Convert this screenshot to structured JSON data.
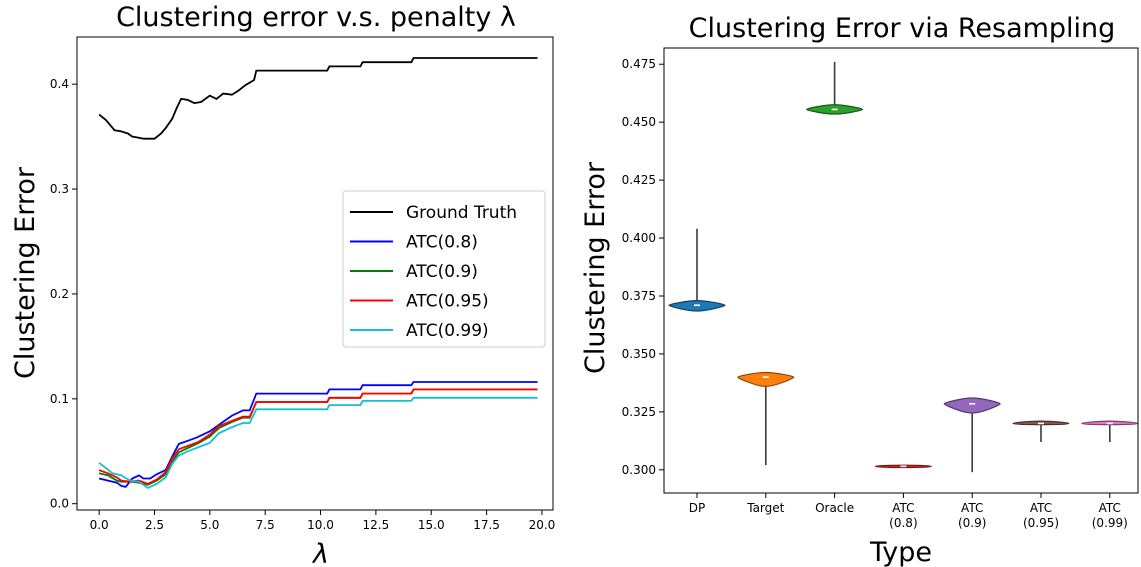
{
  "chart_data": [
    {
      "type": "line",
      "title": "Clustering error v.s. penalty λ",
      "xlabel": "λ",
      "ylabel": "Clustering Error",
      "xlim": [
        -1,
        20.5
      ],
      "ylim": [
        -0.006,
        0.445
      ],
      "xticks": [
        0.0,
        2.5,
        5.0,
        7.5,
        10.0,
        12.5,
        15.0,
        17.5,
        20.0
      ],
      "xtick_labels": [
        "0.0",
        "2.5",
        "5.0",
        "7.5",
        "10.0",
        "12.5",
        "15.0",
        "17.5",
        "20.0"
      ],
      "yticks": [
        0.0,
        0.1,
        0.2,
        0.3,
        0.4
      ],
      "ytick_labels": [
        "0.0",
        "0.1",
        "0.2",
        "0.3",
        "0.4"
      ],
      "grid": false,
      "legend_position": "right",
      "series": [
        {
          "name": "Ground Truth",
          "color": "#000000",
          "points": [
            [
              0,
              0.371
            ],
            [
              0.3,
              0.366
            ],
            [
              0.5,
              0.361
            ],
            [
              0.7,
              0.356
            ],
            [
              1.0,
              0.355
            ],
            [
              1.3,
              0.353
            ],
            [
              1.5,
              0.35
            ],
            [
              1.8,
              0.349
            ],
            [
              2.0,
              0.348
            ],
            [
              2.5,
              0.348
            ],
            [
              2.8,
              0.353
            ],
            [
              3.0,
              0.358
            ],
            [
              3.3,
              0.367
            ],
            [
              3.5,
              0.377
            ],
            [
              3.7,
              0.386
            ],
            [
              4.0,
              0.385
            ],
            [
              4.3,
              0.382
            ],
            [
              4.6,
              0.383
            ],
            [
              5.0,
              0.389
            ],
            [
              5.3,
              0.386
            ],
            [
              5.6,
              0.391
            ],
            [
              6.0,
              0.39
            ],
            [
              6.3,
              0.394
            ],
            [
              6.6,
              0.399
            ],
            [
              7.0,
              0.404
            ],
            [
              7.1,
              0.413
            ],
            [
              10.3,
              0.413
            ],
            [
              10.4,
              0.417
            ],
            [
              11.8,
              0.417
            ],
            [
              11.9,
              0.421
            ],
            [
              14.1,
              0.421
            ],
            [
              14.2,
              0.425
            ],
            [
              19.8,
              0.425
            ]
          ]
        },
        {
          "name": "ATC(0.8)",
          "color": "#0000ff",
          "points": [
            [
              0,
              0.024
            ],
            [
              0.4,
              0.022
            ],
            [
              0.8,
              0.02
            ],
            [
              1.0,
              0.017
            ],
            [
              1.2,
              0.016
            ],
            [
              1.5,
              0.024
            ],
            [
              1.8,
              0.027
            ],
            [
              2.0,
              0.024
            ],
            [
              2.3,
              0.024
            ],
            [
              2.6,
              0.028
            ],
            [
              3.0,
              0.032
            ],
            [
              3.3,
              0.045
            ],
            [
              3.6,
              0.057
            ],
            [
              4.0,
              0.06
            ],
            [
              4.4,
              0.063
            ],
            [
              5.0,
              0.069
            ],
            [
              5.4,
              0.075
            ],
            [
              6.0,
              0.084
            ],
            [
              6.5,
              0.089
            ],
            [
              6.8,
              0.089
            ],
            [
              7.1,
              0.105
            ],
            [
              10.3,
              0.105
            ],
            [
              10.4,
              0.109
            ],
            [
              11.8,
              0.109
            ],
            [
              11.9,
              0.113
            ],
            [
              14.1,
              0.113
            ],
            [
              14.2,
              0.116
            ],
            [
              19.8,
              0.116
            ]
          ]
        },
        {
          "name": "ATC(0.9)",
          "color": "#008000",
          "points": [
            [
              0,
              0.029
            ],
            [
              0.4,
              0.027
            ],
            [
              0.8,
              0.022
            ],
            [
              1.0,
              0.021
            ],
            [
              1.5,
              0.021
            ],
            [
              1.8,
              0.02
            ],
            [
              2.2,
              0.018
            ],
            [
              2.6,
              0.022
            ],
            [
              3.0,
              0.028
            ],
            [
              3.3,
              0.04
            ],
            [
              3.6,
              0.049
            ],
            [
              4.0,
              0.053
            ],
            [
              4.5,
              0.058
            ],
            [
              5.0,
              0.064
            ],
            [
              5.4,
              0.072
            ],
            [
              6.0,
              0.078
            ],
            [
              6.5,
              0.082
            ],
            [
              6.8,
              0.082
            ],
            [
              7.1,
              0.097
            ],
            [
              10.3,
              0.097
            ],
            [
              10.4,
              0.101
            ],
            [
              11.8,
              0.101
            ],
            [
              11.9,
              0.105
            ],
            [
              14.1,
              0.105
            ],
            [
              14.2,
              0.109
            ],
            [
              19.8,
              0.109
            ]
          ]
        },
        {
          "name": "ATC(0.95)",
          "color": "#ff0000",
          "points": [
            [
              0,
              0.032
            ],
            [
              0.4,
              0.029
            ],
            [
              0.8,
              0.025
            ],
            [
              1.0,
              0.022
            ],
            [
              1.4,
              0.021
            ],
            [
              1.8,
              0.022
            ],
            [
              2.2,
              0.019
            ],
            [
              2.6,
              0.023
            ],
            [
              3.0,
              0.03
            ],
            [
              3.3,
              0.043
            ],
            [
              3.6,
              0.052
            ],
            [
              4.0,
              0.055
            ],
            [
              4.5,
              0.059
            ],
            [
              5.0,
              0.066
            ],
            [
              5.4,
              0.074
            ],
            [
              6.0,
              0.079
            ],
            [
              6.5,
              0.083
            ],
            [
              6.8,
              0.083
            ],
            [
              7.1,
              0.097
            ],
            [
              10.3,
              0.097
            ],
            [
              10.4,
              0.101
            ],
            [
              11.8,
              0.101
            ],
            [
              11.9,
              0.105
            ],
            [
              14.1,
              0.105
            ],
            [
              14.2,
              0.109
            ],
            [
              19.8,
              0.109
            ]
          ]
        },
        {
          "name": "ATC(0.99)",
          "color": "#17becf",
          "points": [
            [
              0,
              0.039
            ],
            [
              0.3,
              0.034
            ],
            [
              0.6,
              0.029
            ],
            [
              1.0,
              0.027
            ],
            [
              1.4,
              0.022
            ],
            [
              1.8,
              0.021
            ],
            [
              2.2,
              0.015
            ],
            [
              2.6,
              0.019
            ],
            [
              3.0,
              0.025
            ],
            [
              3.3,
              0.038
            ],
            [
              3.6,
              0.046
            ],
            [
              4.0,
              0.05
            ],
            [
              4.5,
              0.054
            ],
            [
              5.0,
              0.058
            ],
            [
              5.4,
              0.067
            ],
            [
              6.0,
              0.073
            ],
            [
              6.5,
              0.077
            ],
            [
              6.8,
              0.077
            ],
            [
              7.1,
              0.09
            ],
            [
              10.3,
              0.09
            ],
            [
              10.4,
              0.094
            ],
            [
              11.8,
              0.094
            ],
            [
              11.9,
              0.098
            ],
            [
              14.1,
              0.098
            ],
            [
              14.2,
              0.101
            ],
            [
              19.8,
              0.101
            ]
          ]
        }
      ]
    },
    {
      "type": "violin",
      "title": "Clustering Error via Resampling",
      "xlabel": "Type",
      "ylabel": "Clustering Error",
      "ylim": [
        0.29,
        0.482
      ],
      "yticks": [
        0.3,
        0.325,
        0.35,
        0.375,
        0.4,
        0.425,
        0.45,
        0.475
      ],
      "ytick_labels": [
        "0.300",
        "0.325",
        "0.350",
        "0.375",
        "0.400",
        "0.425",
        "0.450",
        "0.475"
      ],
      "grid": false,
      "categories": [
        "DP",
        "Target",
        "Oracle",
        "ATC\n(0.8)",
        "ATC\n(0.9)",
        "ATC\n(0.95)",
        "ATC\n(0.99)"
      ],
      "violins": [
        {
          "category": "DP",
          "color": "#1f77b4",
          "min": 0.3685,
          "max": 0.404,
          "median": 0.371,
          "body_low": 0.3685,
          "body_high": 0.373
        },
        {
          "category": "Target",
          "color": "#ff7f0e",
          "min": 0.302,
          "max": 0.342,
          "median": 0.34,
          "body_low": 0.336,
          "body_high": 0.342
        },
        {
          "category": "Oracle",
          "color": "#2ca02c",
          "min": 0.4535,
          "max": 0.476,
          "median": 0.4555,
          "body_low": 0.4535,
          "body_high": 0.4575
        },
        {
          "category": "ATC\n(0.8)",
          "color": "#d62728",
          "min": 0.3015,
          "max": 0.3015,
          "median": 0.3015,
          "body_low": 0.301,
          "body_high": 0.302
        },
        {
          "category": "ATC\n(0.9)",
          "color": "#9467bd",
          "min": 0.299,
          "max": 0.331,
          "median": 0.3285,
          "body_low": 0.3245,
          "body_high": 0.331
        },
        {
          "category": "ATC\n(0.95)",
          "color": "#8c564b",
          "min": 0.312,
          "max": 0.321,
          "median": 0.32,
          "body_low": 0.3195,
          "body_high": 0.321
        },
        {
          "category": "ATC\n(0.99)",
          "color": "#e377c2",
          "min": 0.312,
          "max": 0.321,
          "median": 0.32,
          "body_low": 0.3195,
          "body_high": 0.321
        }
      ]
    }
  ]
}
